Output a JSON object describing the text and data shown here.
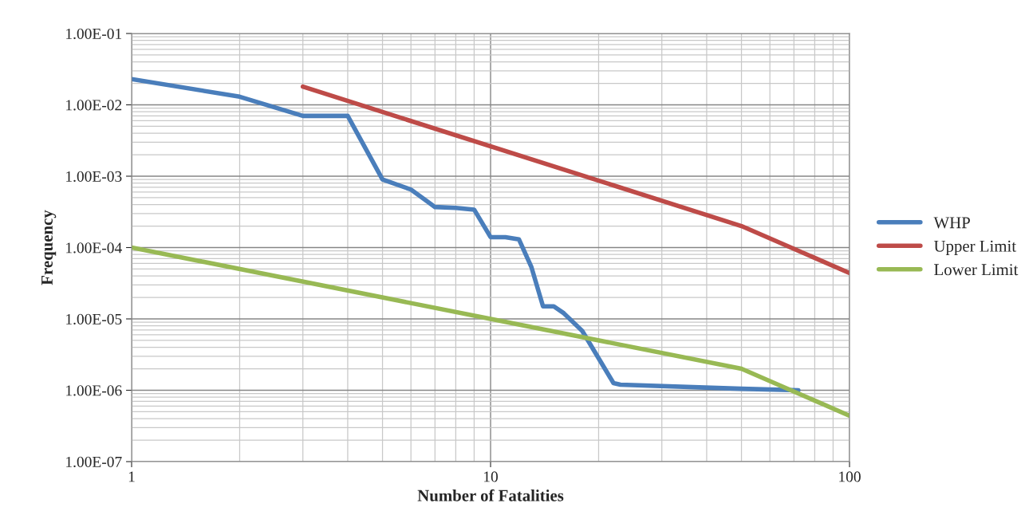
{
  "chart_data": {
    "type": "line",
    "xlabel": "Number of Fatalities",
    "ylabel": "Frequency",
    "log": "xy",
    "grid": true,
    "legend": "right",
    "xlim": [
      1,
      100
    ],
    "xticks": [
      1,
      10,
      100
    ],
    "ylim": [
      1e-07,
      0.1
    ],
    "yticks": [
      {
        "value": 1e-07,
        "label": "1.00E-07"
      },
      {
        "value": 1e-06,
        "label": "1.00E-06"
      },
      {
        "value": 1e-05,
        "label": "1.00E-05"
      },
      {
        "value": 0.0001,
        "label": "1.00E-04"
      },
      {
        "value": 0.001,
        "label": "1.00E-03"
      },
      {
        "value": 0.01,
        "label": "1.00E-02"
      },
      {
        "value": 0.1,
        "label": "1.00E-01"
      }
    ],
    "series": [
      {
        "name": "WHP",
        "color": "#4a7ebb",
        "x": [
          1,
          2,
          3,
          4,
          5,
          6,
          7,
          8,
          9,
          10,
          11,
          12,
          13,
          14,
          15,
          16,
          18,
          22,
          23,
          50,
          72
        ],
        "values": [
          0.023,
          0.013,
          0.007,
          0.007,
          0.0009,
          0.00065,
          0.00037,
          0.00036,
          0.00034,
          0.00014,
          0.00014,
          0.00013,
          5.3e-05,
          1.5e-05,
          1.5e-05,
          1.2e-05,
          6.8e-06,
          1.26e-06,
          1.2e-06,
          1.05e-06,
          1e-06
        ]
      },
      {
        "name": "Upper Limit",
        "color": "#be4b48",
        "x": [
          3,
          50,
          100
        ],
        "values": [
          0.018,
          0.0002,
          4.4e-05
        ]
      },
      {
        "name": "Lower Limit",
        "color": "#98b954",
        "x": [
          1,
          10,
          50,
          100
        ],
        "values": [
          0.0001,
          1e-05,
          2e-06,
          4.4e-07
        ]
      }
    ]
  }
}
